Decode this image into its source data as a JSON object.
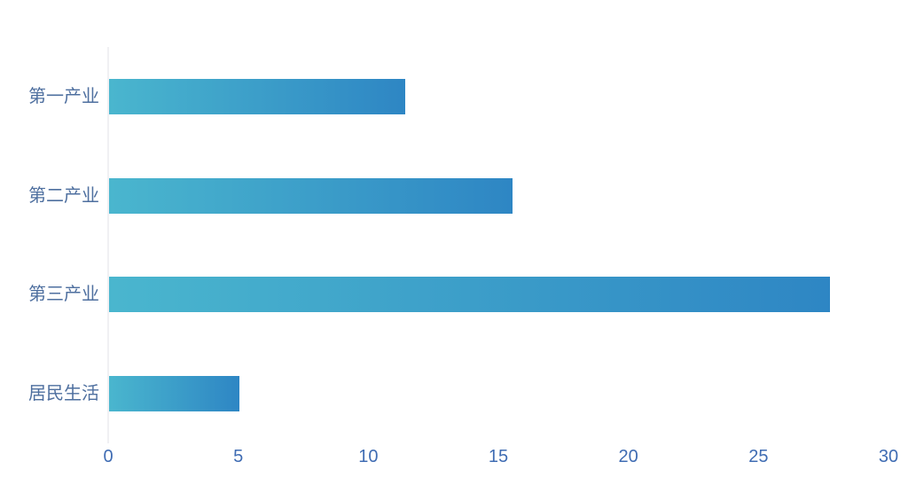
{
  "chart_data": {
    "type": "bar",
    "orientation": "horizontal",
    "title": "",
    "categories": [
      "第一产业",
      "第二产业",
      "第三产业",
      "居民生活"
    ],
    "series": [
      {
        "name": "",
        "values": [
          11.4,
          15.5,
          27.7,
          5
        ]
      }
    ],
    "x_axis": {
      "min": 0,
      "max": 30,
      "tick_interval": 5,
      "tick_labels": [
        "0",
        "5",
        "10",
        "15",
        "20",
        "25",
        "30"
      ]
    },
    "y_axis": {
      "labels_top_to_bottom": [
        "第一产业",
        "第二产业",
        "第三产业",
        "居民生活"
      ]
    },
    "grid": false,
    "legend": false,
    "styles": {
      "background": "#FFFFFF",
      "bar_gradient_start": "#4AB6CE",
      "bar_gradient_end": "#2E86C4",
      "axis_line_color": "#F0F0F3",
      "category_label_color": "#4E6F9F",
      "tick_label_color": "#3F6CB3"
    }
  }
}
